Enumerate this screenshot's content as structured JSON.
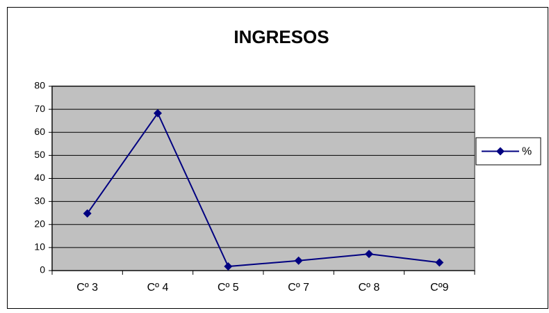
{
  "chart_data": {
    "type": "line",
    "title": "INGRESOS",
    "categories": [
      "Cº 3",
      "Cº 4",
      "Cº 5",
      "Cº 7",
      "Cº 8",
      "Cº9"
    ],
    "series": [
      {
        "name": "%",
        "color": "#000080",
        "values": [
          24.8,
          68.3,
          1.8,
          4.3,
          7.2,
          3.5
        ]
      }
    ],
    "ylim": [
      0,
      80
    ],
    "yticks": [
      0,
      10,
      20,
      30,
      40,
      50,
      60,
      70,
      80
    ],
    "grid": true,
    "legend": "right"
  }
}
